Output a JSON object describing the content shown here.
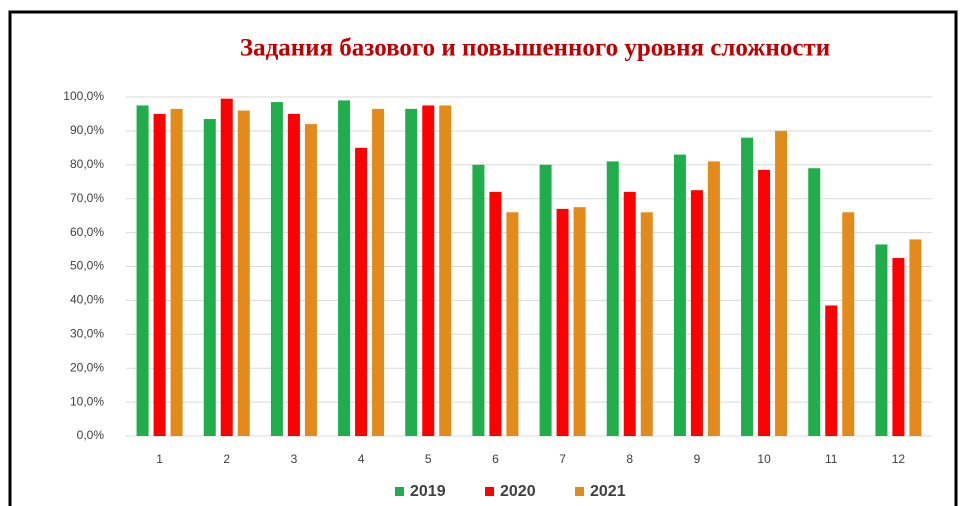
{
  "chart_data": {
    "type": "bar",
    "title": "Задания базового и повышенного уровня сложности",
    "categories": [
      "1",
      "2",
      "3",
      "4",
      "5",
      "6",
      "7",
      "8",
      "9",
      "10",
      "11",
      "12"
    ],
    "series": [
      {
        "name": "2019",
        "color": "#1fae4b",
        "values": [
          97.5,
          93.5,
          98.5,
          99,
          96.5,
          80,
          80,
          81,
          83,
          88,
          79,
          56.5
        ]
      },
      {
        "name": "2020",
        "color": "#ff0000",
        "values": [
          95,
          99.5,
          95,
          85,
          97.5,
          72,
          67,
          72,
          72.5,
          78.5,
          38.5,
          52.5
        ]
      },
      {
        "name": "2021",
        "color": "#e38b1a",
        "values": [
          96.5,
          96,
          92,
          96.5,
          97.5,
          66,
          67.5,
          66,
          81,
          90,
          66,
          58
        ]
      }
    ],
    "ylim": [
      0,
      100
    ],
    "yticks": [
      {
        "value": 0,
        "label": "0,0%"
      },
      {
        "value": 10,
        "label": "10,0%"
      },
      {
        "value": 20,
        "label": "20,0%"
      },
      {
        "value": 30,
        "label": "30,0%"
      },
      {
        "value": 40,
        "label": "40,0%"
      },
      {
        "value": 50,
        "label": "50,0%"
      },
      {
        "value": 60,
        "label": "60,0%"
      },
      {
        "value": 70,
        "label": "70,0%"
      },
      {
        "value": 80,
        "label": "80,0%"
      },
      {
        "value": 90,
        "label": "90,0%"
      },
      {
        "value": 100,
        "label": "100,0%"
      }
    ],
    "grid": true,
    "legend": "bottom"
  }
}
